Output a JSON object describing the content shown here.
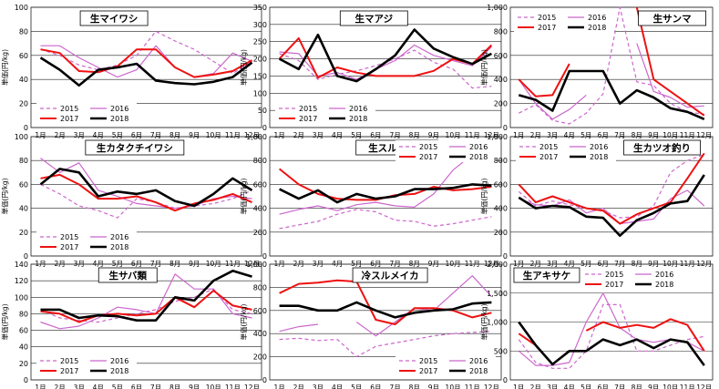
{
  "colors": {
    "2015": "#cc66cc",
    "2016": "#cc66cc",
    "2017": "#ee1111",
    "2018": "#000000",
    "grid": "#222222",
    "frame": "#222222"
  },
  "chart_data": [
    {
      "type": "line",
      "title": "生マイワシ",
      "ylabel": "単価(円/kg)",
      "ylim": [
        0,
        100
      ],
      "yticks": [
        "0",
        "20",
        "40",
        "60",
        "80",
        "100"
      ],
      "categories": [
        "1月",
        "2月",
        "3月",
        "4月",
        "5月",
        "6月",
        "7月",
        "8月",
        "9月",
        "10月",
        "11月",
        "12月"
      ],
      "legend_position": "bottom-left",
      "series": [
        {
          "name": "2015",
          "values": [
            65,
            60,
            52,
            48,
            52,
            60,
            80,
            72,
            65,
            55,
            45,
            55
          ]
        },
        {
          "name": "2016",
          "values": [
            68,
            68,
            58,
            50,
            42,
            48,
            68,
            50,
            42,
            45,
            62,
            55
          ]
        },
        {
          "name": "2017",
          "values": [
            65,
            62,
            47,
            46,
            51,
            65,
            65,
            50,
            42,
            44,
            47,
            56
          ]
        },
        {
          "name": "2018",
          "values": [
            58,
            48,
            35,
            48,
            50,
            53,
            39,
            37,
            36,
            38,
            42,
            54
          ]
        }
      ]
    },
    {
      "type": "line",
      "title": "生マアジ",
      "ylabel": "単価(円/kg)",
      "ylim": [
        0,
        350
      ],
      "yticks": [
        "0",
        "50",
        "100",
        "150",
        "200",
        "250",
        "300",
        "350"
      ],
      "categories": [
        "1月",
        "2月",
        "3月",
        "4月",
        "5月",
        "6月",
        "7月",
        "8月",
        "9月",
        "10月",
        "11月",
        "12月"
      ],
      "legend_position": "bottom-left",
      "series": [
        {
          "name": "2015",
          "values": [
            215,
            195,
            140,
            155,
            165,
            180,
            200,
            225,
            190,
            170,
            115,
            120
          ]
        },
        {
          "name": "2016",
          "values": [
            220,
            215,
            150,
            160,
            140,
            170,
            195,
            240,
            210,
            195,
            180,
            235
          ]
        },
        {
          "name": "2017",
          "values": [
            200,
            260,
            145,
            175,
            160,
            150,
            150,
            150,
            165,
            200,
            185,
            240
          ]
        },
        {
          "name": "2018",
          "values": [
            200,
            170,
            270,
            150,
            135,
            170,
            210,
            285,
            230,
            205,
            185,
            215
          ]
        }
      ]
    },
    {
      "type": "line",
      "title": "生サンマ",
      "ylabel": "単価(円/kg)",
      "ylim": [
        0,
        1000
      ],
      "yticks": [
        "0",
        "200",
        "400",
        "600",
        "800",
        "1,000"
      ],
      "categories": [
        "1月",
        "2月",
        "3月",
        "4月",
        "5月",
        "6月",
        "7月",
        "8月",
        "9月",
        "10月",
        "11月",
        "12月"
      ],
      "legend_position": "top-left",
      "series": [
        {
          "name": "2015",
          "values": [
            120,
            190,
            60,
            30,
            120,
            280,
            1000,
            380,
            350,
            200,
            130,
            110
          ]
        },
        {
          "name": "2016",
          "values": [
            400,
            200,
            70,
            150,
            270,
            null,
            null,
            700,
            300,
            250,
            170,
            180
          ]
        },
        {
          "name": "2017",
          "values": [
            400,
            260,
            270,
            530,
            null,
            null,
            null,
            1000,
            400,
            300,
            200,
            100
          ]
        },
        {
          "name": "2018",
          "values": [
            270,
            230,
            140,
            470,
            470,
            470,
            200,
            310,
            250,
            160,
            130,
            70
          ]
        }
      ]
    },
    {
      "type": "line",
      "title": "生カタクチイワシ",
      "ylabel": "単価(円/kg)",
      "ylim": [
        0,
        100
      ],
      "yticks": [
        "0",
        "20",
        "40",
        "60",
        "80",
        "100"
      ],
      "categories": [
        "1月",
        "2月",
        "3月",
        "4月",
        "5月",
        "6月",
        "7月",
        "8月",
        "9月",
        "10月",
        "11月",
        "12月"
      ],
      "legend_position": "bottom-left",
      "series": [
        {
          "name": "2015",
          "values": [
            60,
            52,
            42,
            38,
            32,
            48,
            45,
            40,
            42,
            44,
            48,
            55
          ]
        },
        {
          "name": "2016",
          "values": [
            82,
            70,
            78,
            55,
            50,
            44,
            42,
            40,
            42,
            48,
            50,
            48
          ]
        },
        {
          "name": "2017",
          "values": [
            65,
            68,
            60,
            48,
            48,
            50,
            45,
            38,
            44,
            47,
            52,
            45
          ]
        },
        {
          "name": "2018",
          "values": [
            60,
            73,
            70,
            50,
            54,
            52,
            55,
            46,
            42,
            52,
            65,
            55
          ]
        }
      ]
    },
    {
      "type": "line",
      "title": "生スルメイカ",
      "ylabel": "単価(円/kg)",
      "ylim": [
        0,
        1000
      ],
      "yticks": [
        "0",
        "200",
        "400",
        "600",
        "800",
        "1,000"
      ],
      "categories": [
        "1月",
        "2月",
        "3月",
        "4月",
        "5月",
        "6月",
        "7月",
        "8月",
        "9月",
        "10月",
        "11月",
        "12月"
      ],
      "legend_position": "top-right",
      "series": [
        {
          "name": "2015",
          "values": [
            230,
            260,
            290,
            350,
            390,
            370,
            300,
            290,
            250,
            270,
            300,
            330
          ]
        },
        {
          "name": "2016",
          "values": [
            350,
            390,
            420,
            380,
            430,
            450,
            420,
            410,
            520,
            720,
            850,
            800
          ]
        },
        {
          "name": "2017",
          "values": [
            730,
            600,
            520,
            480,
            470,
            470,
            510,
            520,
            580,
            550,
            560,
            580
          ]
        },
        {
          "name": "2018",
          "values": [
            560,
            480,
            550,
            450,
            520,
            480,
            500,
            560,
            560,
            570,
            600,
            590
          ]
        }
      ]
    },
    {
      "type": "line",
      "title": "生カツオ釣り",
      "ylabel": "単価(円/kg)",
      "ylim": [
        0,
        1000
      ],
      "yticks": [
        "0",
        "200",
        "400",
        "600",
        "800",
        "1,000"
      ],
      "categories": [
        "1月",
        "2月",
        "3月",
        "4月",
        "5月",
        "6月",
        "7月",
        "8月",
        "9月",
        "10月",
        "11月",
        "12月"
      ],
      "legend_position": "top-left",
      "series": [
        {
          "name": "2015",
          "values": [
            540,
            420,
            460,
            430,
            400,
            380,
            320,
            330,
            420,
            700,
            800,
            850
          ]
        },
        {
          "name": "2016",
          "values": [
            480,
            430,
            420,
            470,
            360,
            400,
            270,
            290,
            310,
            480,
            550,
            420
          ]
        },
        {
          "name": "2017",
          "values": [
            600,
            450,
            500,
            450,
            400,
            380,
            270,
            350,
            400,
            450,
            650,
            860
          ]
        },
        {
          "name": "2018",
          "values": [
            490,
            400,
            420,
            410,
            330,
            320,
            170,
            300,
            360,
            440,
            460,
            680
          ]
        }
      ]
    },
    {
      "type": "line",
      "title": "生サバ類",
      "ylabel": "単価(円/kg)",
      "ylim": [
        0,
        140
      ],
      "yticks": [
        "0",
        "20",
        "40",
        "60",
        "80",
        "100",
        "120",
        "140"
      ],
      "categories": [
        "1月",
        "2月",
        "3月",
        "4月",
        "5月",
        "6月",
        "7月",
        "8月",
        "9月",
        "10月",
        "11月",
        "12月"
      ],
      "legend_position": "bottom-left",
      "series": [
        {
          "name": "2015",
          "values": [
            85,
            75,
            72,
            70,
            75,
            80,
            85,
            95,
            100,
            110,
            85,
            80
          ]
        },
        {
          "name": "2016",
          "values": [
            70,
            62,
            65,
            75,
            88,
            85,
            80,
            128,
            110,
            110,
            80,
            75
          ]
        },
        {
          "name": "2017",
          "values": [
            83,
            80,
            70,
            78,
            80,
            78,
            80,
            100,
            88,
            108,
            90,
            85
          ]
        },
        {
          "name": "2018",
          "values": [
            85,
            85,
            75,
            78,
            77,
            72,
            72,
            100,
            96,
            120,
            132,
            125
          ]
        }
      ]
    },
    {
      "type": "line",
      "title": "冷スルメイカ",
      "ylabel": "単価(円/kg)",
      "ylim": [
        0,
        1000
      ],
      "yticks": [
        "0",
        "200",
        "400",
        "600",
        "800",
        "1,000"
      ],
      "categories": [
        "1月",
        "2月",
        "3月",
        "4月",
        "5月",
        "6月",
        "7月",
        "8月",
        "9月",
        "10月",
        "11月",
        "12月"
      ],
      "legend_position": "bottom-right",
      "series": [
        {
          "name": "2015",
          "values": [
            350,
            360,
            340,
            350,
            200,
            290,
            320,
            350,
            380,
            400,
            410,
            420
          ]
        },
        {
          "name": "2016",
          "values": [
            420,
            460,
            480,
            null,
            500,
            380,
            500,
            620,
            600,
            750,
            900,
            720
          ]
        },
        {
          "name": "2017",
          "values": [
            750,
            830,
            840,
            860,
            850,
            520,
            480,
            620,
            620,
            600,
            540,
            580
          ]
        },
        {
          "name": "2018",
          "values": [
            640,
            640,
            600,
            600,
            670,
            600,
            540,
            580,
            600,
            610,
            660,
            670
          ]
        }
      ]
    },
    {
      "type": "line",
      "title": "生アキサケ",
      "ylabel": "単価(円/kg)",
      "ylim": [
        0,
        2000
      ],
      "yticks": [
        "0",
        "500",
        "1,000",
        "1,500",
        "2,000"
      ],
      "categories": [
        "1月",
        "2月",
        "3月",
        "4月",
        "5月",
        "6月",
        "7月",
        "8月",
        "9月",
        "10月",
        "11月",
        "12月"
      ],
      "legend_position": "top-right",
      "series": [
        {
          "name": "2015",
          "values": [
            700,
            300,
            200,
            200,
            500,
            1300,
            1300,
            500,
            500,
            600,
            700,
            750
          ]
        },
        {
          "name": "2016",
          "values": [
            500,
            250,
            250,
            300,
            1000,
            1500,
            900,
            700,
            650,
            700,
            650,
            500
          ]
        },
        {
          "name": "2017",
          "values": [
            800,
            600,
            null,
            null,
            850,
            1000,
            900,
            950,
            900,
            1050,
            950,
            500
          ]
        },
        {
          "name": "2018",
          "values": [
            1000,
            600,
            270,
            500,
            500,
            700,
            600,
            700,
            550,
            700,
            650,
            250
          ]
        }
      ]
    }
  ]
}
